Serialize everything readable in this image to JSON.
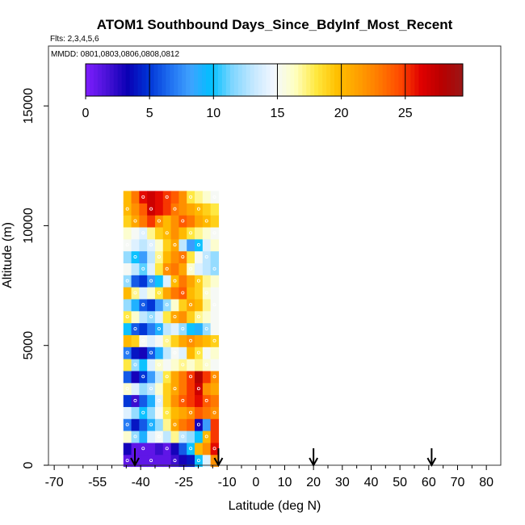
{
  "chart_data": {
    "type": "heatmap",
    "title": "ATOM1 Southbound Days_Since_BdyInf_Most_Recent",
    "subtitle_flights": "Flts: 2,3,4,5,6",
    "note_dates": "MMDD: 0801,0803,0806,0808,0812",
    "xlabel": "Latitude (deg N)",
    "ylabel": "Altitude (m)",
    "xlim": [
      -72,
      85
    ],
    "ylim": [
      0,
      17500
    ],
    "x_ticks": [
      -70,
      -55,
      -40,
      -25,
      -10,
      0,
      10,
      20,
      30,
      40,
      50,
      60,
      70,
      80
    ],
    "x_tick_labels": [
      "-70",
      "-55",
      "-40",
      "-25",
      "-10",
      "0",
      "10",
      "20",
      "30",
      "40",
      "50",
      "60",
      "70",
      "80"
    ],
    "x_minor_ticks": [
      -65,
      -60,
      -50,
      -45,
      -35,
      -30,
      -20,
      -15,
      -5,
      5,
      15,
      25,
      35,
      45,
      55,
      65,
      75
    ],
    "y_ticks": [
      0,
      5000,
      10000,
      15000
    ],
    "y_tick_labels": [
      "0",
      "5000",
      "10000",
      "15000"
    ],
    "colorbar": {
      "min": 0,
      "max": 29.5,
      "ticks": [
        0,
        5,
        10,
        15,
        20,
        25
      ],
      "tick_labels": [
        "0",
        "5",
        "10",
        "15",
        "20",
        "25"
      ],
      "colors": [
        "#7f1dff",
        "#4a12d8",
        "#0a00b4",
        "#0033d6",
        "#1e6ef0",
        "#3fa2ff",
        "#00c0ff",
        "#7fd6ff",
        "#c4e8ff",
        "#f4f8ff",
        "#ffffc0",
        "#ffe840",
        "#ffc000",
        "#ffa000",
        "#ff7a00",
        "#ff4a00",
        "#e00000",
        "#b80000",
        "#9a1616"
      ]
    },
    "arrow_latitudes": [
      -42,
      -13,
      20,
      61
    ],
    "data_region": {
      "lat_min": -46,
      "lat_max": -13,
      "alt_max": 11500,
      "altitude_bands": [
        {
          "alt": 200,
          "values": [
            1,
            1,
            1,
            1,
            1,
            1,
            2,
            3,
            4,
            10,
            14,
            22
          ]
        },
        {
          "alt": 700,
          "values": [
            3,
            1,
            1,
            1,
            2,
            1,
            3,
            6,
            10,
            20,
            22,
            26
          ]
        },
        {
          "alt": 1200,
          "values": [
            16,
            12,
            9,
            14,
            15,
            13,
            17,
            13,
            12,
            10,
            20,
            25
          ]
        },
        {
          "alt": 1700,
          "values": [
            7,
            4,
            6,
            9,
            12,
            17,
            21,
            23,
            24,
            3,
            8,
            25
          ]
        },
        {
          "alt": 2200,
          "values": [
            14,
            12,
            10,
            12,
            15,
            18,
            20,
            21,
            22,
            24,
            23,
            22
          ]
        },
        {
          "alt": 2700,
          "values": [
            5,
            2,
            6,
            9,
            14,
            19,
            22,
            24,
            25,
            26,
            24,
            23
          ]
        },
        {
          "alt": 3200,
          "values": [
            16,
            14,
            12,
            13,
            16,
            19,
            21,
            23,
            25,
            27,
            22,
            21
          ]
        },
        {
          "alt": 3700,
          "values": [
            6,
            3,
            5,
            8,
            13,
            18,
            21,
            23,
            25,
            28,
            25,
            22
          ]
        },
        {
          "alt": 4200,
          "values": [
            18,
            12,
            10,
            14,
            16,
            15,
            16,
            17,
            16,
            17,
            16,
            15
          ]
        },
        {
          "alt": 4700,
          "values": [
            7,
            4,
            3,
            6,
            9,
            13,
            15,
            14,
            20,
            18,
            15,
            16
          ]
        },
        {
          "alt": 5200,
          "values": [
            20,
            19,
            15,
            14,
            15,
            17,
            19,
            21,
            22,
            21,
            20,
            19
          ]
        },
        {
          "alt": 5700,
          "values": [
            10,
            6,
            5,
            7,
            9,
            13,
            14,
            12,
            10,
            9,
            12,
            15
          ]
        },
        {
          "alt": 6200,
          "values": [
            18,
            16,
            13,
            12,
            14,
            18,
            21,
            22,
            19,
            17,
            16,
            15
          ]
        },
        {
          "alt": 6700,
          "values": [
            12,
            9,
            6,
            5,
            8,
            12,
            16,
            19,
            21,
            20,
            17,
            15
          ]
        },
        {
          "alt": 7200,
          "values": [
            20,
            17,
            14,
            16,
            18,
            21,
            23,
            24,
            20,
            19,
            16,
            15
          ]
        },
        {
          "alt": 7700,
          "values": [
            12,
            6,
            5,
            8,
            10,
            14,
            20,
            23,
            21,
            19,
            17,
            16
          ]
        },
        {
          "alt": 8200,
          "values": [
            15,
            13,
            11,
            14,
            18,
            22,
            23,
            21,
            16,
            14,
            13,
            12
          ]
        },
        {
          "alt": 8700,
          "values": [
            12,
            10,
            8,
            13,
            17,
            20,
            22,
            23,
            18,
            15,
            13,
            12
          ]
        },
        {
          "alt": 9200,
          "values": [
            15,
            14,
            13,
            14,
            16,
            19,
            21,
            13,
            8,
            10,
            14,
            16
          ]
        },
        {
          "alt": 9700,
          "values": [
            16,
            15,
            14,
            17,
            19,
            20,
            22,
            20,
            18,
            17,
            16,
            15
          ]
        },
        {
          "alt": 10200,
          "values": [
            19,
            21,
            23,
            25,
            22,
            20,
            22,
            24,
            23,
            21,
            20,
            19
          ]
        },
        {
          "alt": 10700,
          "values": [
            20,
            22,
            24,
            27,
            26,
            25,
            23,
            22,
            21,
            20,
            19,
            18
          ]
        },
        {
          "alt": 11200,
          "values": [
            20,
            23,
            26,
            27,
            26,
            25,
            24,
            22,
            18,
            17,
            16,
            15
          ]
        }
      ]
    }
  }
}
